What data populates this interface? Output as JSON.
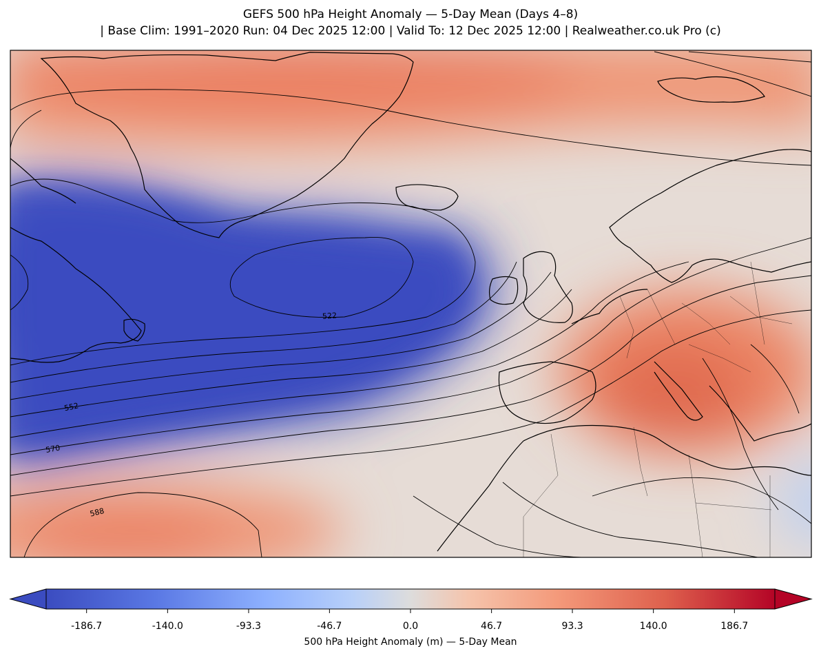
{
  "title_line1": "GEFS 500 hPa Height Anomaly — 5-Day Mean (Days 4–8)",
  "title_line2": "| Base Clim: 1991–2020 Run: 04 Dec 2025 12:00 | Valid To: 12 Dec 2025 12:00 | Realweather.co.uk Pro (c)",
  "contour_labels": [
    "522",
    "552",
    "570",
    "588"
  ],
  "colorbar": {
    "label": "500 hPa Height Anomaly (m) — 5-Day Mean",
    "ticks": [
      "-186.7",
      "-140.0",
      "-93.3",
      "-46.7",
      "0.0",
      "46.7",
      "93.3",
      "140.0",
      "186.7"
    ],
    "range": [
      -210,
      210
    ],
    "colors": {
      "low": "#3b4cc0",
      "mid": "#dddddd",
      "high": "#b40426"
    }
  }
}
